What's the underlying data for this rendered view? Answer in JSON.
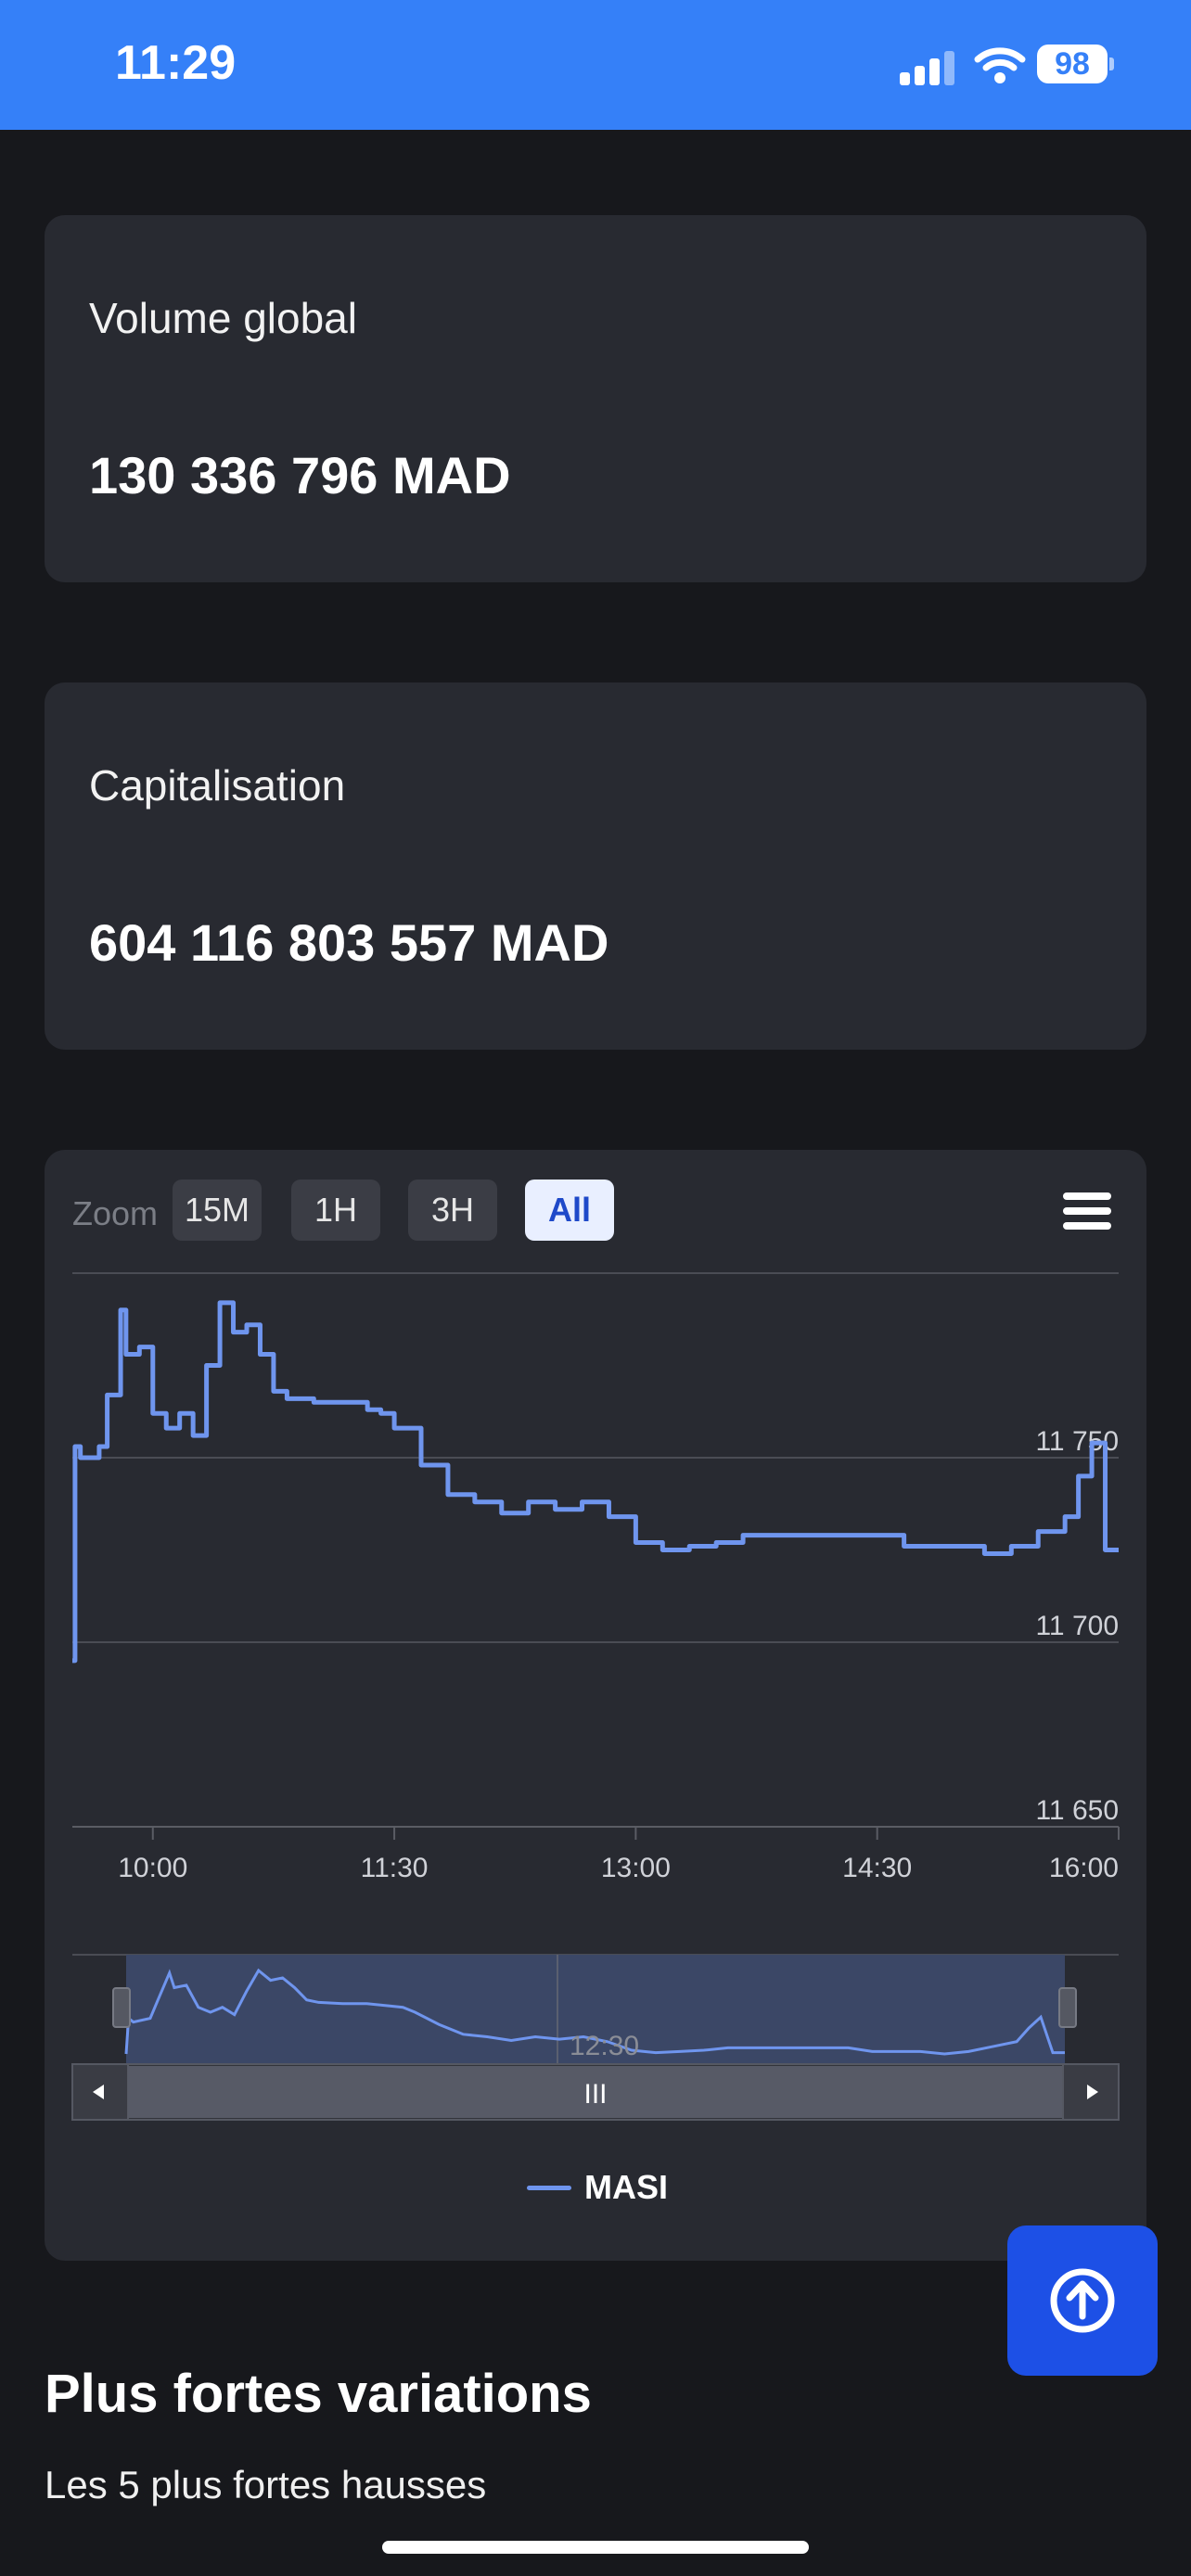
{
  "status_bar": {
    "time": "11:29",
    "battery": "98",
    "color": "#3580f8"
  },
  "cards": [
    {
      "label": "Volume global",
      "value": "130 336 796 MAD"
    },
    {
      "label": "Capitalisation",
      "value": "604 116 803 557 MAD"
    }
  ],
  "chart": {
    "zoom_label": "Zoom",
    "zoom_buttons": [
      "15M",
      "1H",
      "3H",
      "All"
    ],
    "active_zoom": "All",
    "navigator_label": "12:30",
    "navigator_handle": "III"
  },
  "chart_data": {
    "type": "line",
    "ylim": [
      11650,
      11800
    ],
    "yticks": [
      "11 650",
      "11 700",
      "11 750"
    ],
    "xticks": [
      "10:00",
      "11:30",
      "13:00",
      "14:30",
      "16:00"
    ],
    "series": [
      {
        "name": "MASI",
        "color": "#6f95ee",
        "x": [
          "09:30",
          "09:31",
          "09:33",
          "09:40",
          "09:43",
          "09:48",
          "09:50",
          "09:55",
          "10:00",
          "10:05",
          "10:10",
          "10:15",
          "10:20",
          "10:25",
          "10:30",
          "10:35",
          "10:40",
          "10:45",
          "10:50",
          "11:00",
          "11:10",
          "11:20",
          "11:25",
          "11:30",
          "11:40",
          "11:50",
          "12:00",
          "12:10",
          "12:20",
          "12:30",
          "12:40",
          "12:50",
          "13:00",
          "13:10",
          "13:20",
          "13:30",
          "13:40",
          "13:50",
          "14:00",
          "14:10",
          "14:20",
          "14:30",
          "14:40",
          "14:50",
          "15:00",
          "15:10",
          "15:20",
          "15:30",
          "15:40",
          "15:45",
          "15:50",
          "15:55",
          "16:00"
        ],
        "values": [
          11695,
          11753,
          11750,
          11753,
          11767,
          11790,
          11778,
          11780,
          11762,
          11758,
          11762,
          11756,
          11775,
          11792,
          11784,
          11786,
          11778,
          11768,
          11766,
          11765,
          11765,
          11763,
          11762,
          11758,
          11748,
          11740,
          11738,
          11735,
          11738,
          11736,
          11738,
          11734,
          11727,
          11725,
          11726,
          11727,
          11729,
          11729,
          11729,
          11729,
          11729,
          11729,
          11726,
          11726,
          11726,
          11724,
          11726,
          11730,
          11734,
          11745,
          11754,
          11725,
          11725
        ]
      }
    ],
    "legend": [
      "MASI"
    ]
  },
  "sections": {
    "title": "Plus fortes variations",
    "subtitle": "Les 5 plus fortes hausses"
  }
}
